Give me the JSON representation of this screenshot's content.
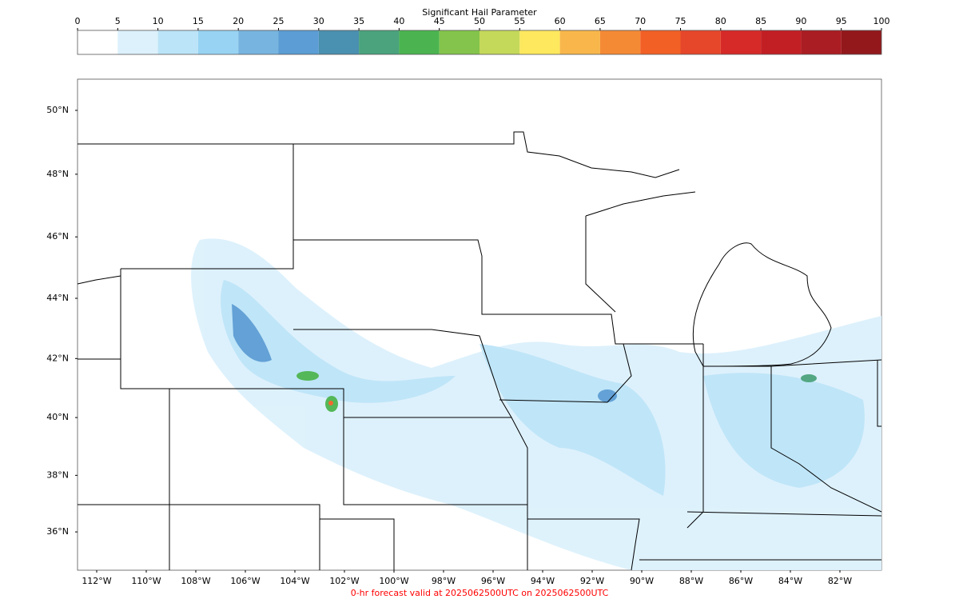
{
  "colorbar": {
    "title": "Significant Hail Parameter",
    "ticks": [
      0,
      5,
      10,
      15,
      20,
      25,
      30,
      35,
      40,
      45,
      50,
      55,
      60,
      65,
      70,
      75,
      80,
      85,
      90,
      95,
      100
    ],
    "colors": [
      "#ffffff",
      "#dcf1fc",
      "#bce4f8",
      "#98d3f3",
      "#77b5e0",
      "#5b9dd4",
      "#4a90b0",
      "#4aa37d",
      "#4bb450",
      "#84c44c",
      "#c4d95a",
      "#fde85e",
      "#f9b74b",
      "#f58a35",
      "#f26025",
      "#e6462a",
      "#d62a28",
      "#c21f24",
      "#aa1d22",
      "#93181c"
    ]
  },
  "map": {
    "xticks": [
      {
        "value": -112,
        "label": "112°W"
      },
      {
        "value": -110,
        "label": "110°W"
      },
      {
        "value": -108,
        "label": "108°W"
      },
      {
        "value": -106,
        "label": "106°W"
      },
      {
        "value": -104,
        "label": "104°W"
      },
      {
        "value": -102,
        "label": "102°W"
      },
      {
        "value": -100,
        "label": "100°W"
      },
      {
        "value": -98,
        "label": "98°W"
      },
      {
        "value": -96,
        "label": "96°W"
      },
      {
        "value": -94,
        "label": "94°W"
      },
      {
        "value": -92,
        "label": "92°W"
      },
      {
        "value": -90,
        "label": "90°W"
      },
      {
        "value": -88,
        "label": "88°W"
      },
      {
        "value": -86,
        "label": "86°W"
      },
      {
        "value": -84,
        "label": "84°W"
      },
      {
        "value": -82,
        "label": "82°W"
      }
    ],
    "yticks": [
      {
        "value": 50,
        "label": "50°N"
      },
      {
        "value": 48,
        "label": "48°N"
      },
      {
        "value": 46,
        "label": "46°N"
      },
      {
        "value": 44,
        "label": "44°N"
      },
      {
        "value": 42,
        "label": "42°N"
      },
      {
        "value": 40,
        "label": "40°N"
      },
      {
        "value": 38,
        "label": "38°N"
      },
      {
        "value": 36,
        "label": "36°N"
      }
    ]
  },
  "footer": "0-hr forecast valid at 2025062500UTC on 2025062500UTC"
}
